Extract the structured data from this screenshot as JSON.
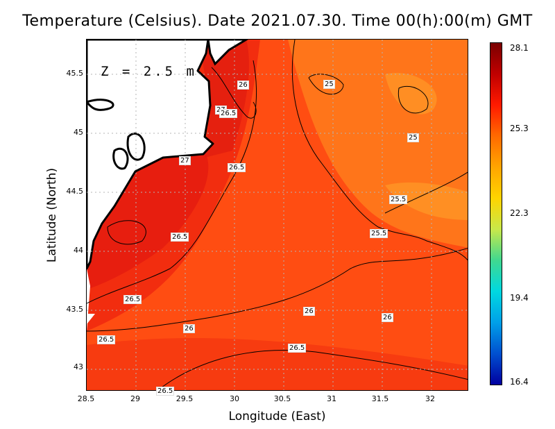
{
  "title": "Temperature (Celsius). Date 2021.07.30. Time 00(h):00(m) GMT",
  "depth_label": "Z = 2.5 m",
  "axes": {
    "xlabel": "Longitude (East)",
    "ylabel": "Latitude (North)",
    "xticks": [
      "28.5",
      "29",
      "29.5",
      "30",
      "30.5",
      "31",
      "31.5",
      "32"
    ],
    "yticks": [
      "45.5",
      "45",
      "44.5",
      "44",
      "43.5",
      "43"
    ]
  },
  "colorbar": {
    "ticks": [
      "28.1",
      "25.3",
      "22.3",
      "19.4",
      "16.4"
    ],
    "colors": [
      "#7a0000",
      "#c00000",
      "#ff1a00",
      "#ff6a00",
      "#ffa500",
      "#ffd400",
      "#c8e84a",
      "#40d890",
      "#00d8e0",
      "#00a0e8",
      "#0050d0",
      "#0000a0"
    ]
  },
  "contour_labels": [
    "26",
    "27",
    "26.5",
    "26.5",
    "27",
    "26.5",
    "26.5",
    "26.5",
    "26.5",
    "26",
    "26",
    "26",
    "26.5",
    "26.5",
    "25",
    "25",
    "25.5",
    "25.5"
  ],
  "colors": {
    "sea_main": "#ff4a10",
    "sea_warm": "#ee1a10",
    "sea_cool": "#ff7a1a",
    "land": "#ffffff",
    "coast": "#000000"
  }
}
